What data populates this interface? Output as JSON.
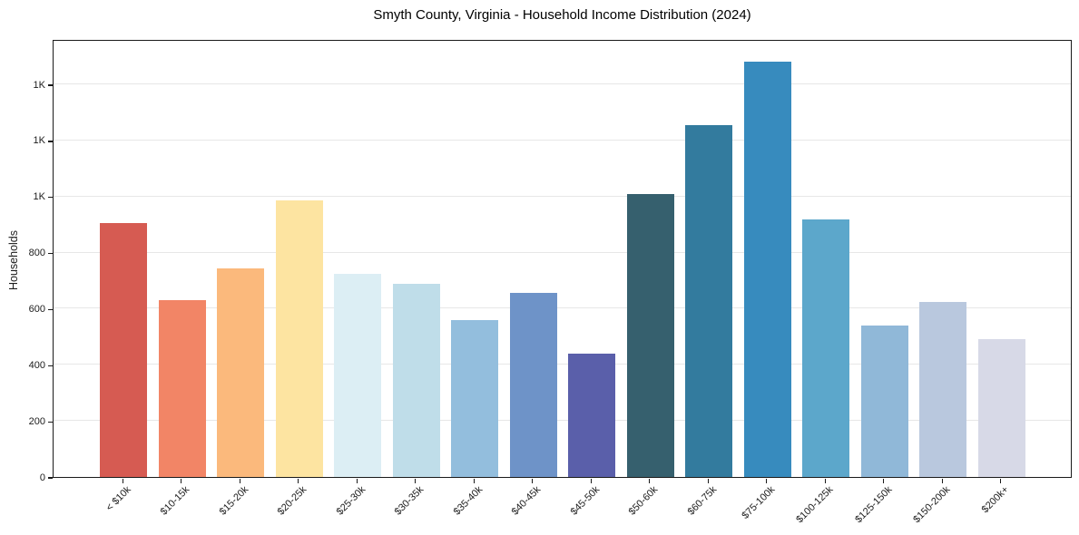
{
  "title": "Smyth County, Virginia - Household Income Distribution (2024)",
  "chart_data": {
    "type": "bar",
    "title": "Smyth County, Virginia - Household Income Distribution (2024)",
    "xlabel": "",
    "ylabel": "Households",
    "categories": [
      "< $10k",
      "$10-15k",
      "$15-20k",
      "$20-25k",
      "$25-30k",
      "$30-35k",
      "$35-40k",
      "$40-45k",
      "$45-50k",
      "$50-60k",
      "$60-75k",
      "$75-100k",
      "$100-125k",
      "$125-150k",
      "$150-200k",
      "$200k+"
    ],
    "values": [
      905,
      630,
      745,
      985,
      725,
      690,
      560,
      655,
      440,
      1010,
      1255,
      1480,
      920,
      540,
      625,
      490
    ],
    "bar_colors": [
      "#d65b52",
      "#f28566",
      "#fbb97c",
      "#fde4a1",
      "#dceef4",
      "#bfdde9",
      "#93bedd",
      "#6e93c8",
      "#5a5faa",
      "#36606e",
      "#337b9e",
      "#378bbe",
      "#5ca7cb",
      "#90b8d8",
      "#b9c8de",
      "#d7d9e7"
    ],
    "ylim": [
      0,
      1562
    ],
    "yticks": [
      0,
      200,
      400,
      600,
      800,
      1000,
      1200,
      1400
    ],
    "ytick_labels": [
      "0",
      "200",
      "400",
      "600",
      "800",
      "1K",
      "1K",
      "1K"
    ],
    "grid": "horizontal",
    "gridline_color": "#e7e7e7",
    "legend_position": "none",
    "xtick_rotation_deg": 45,
    "background_color": "#ffffff"
  }
}
